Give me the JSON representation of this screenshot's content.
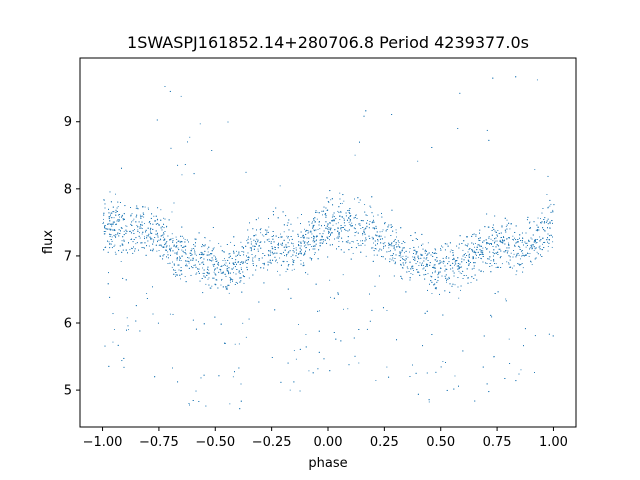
{
  "chart_data": {
    "type": "scatter",
    "title": "1SWASPJ161852.14+280706.8 Period 4239377.0s",
    "xlabel": "phase",
    "ylabel": "flux",
    "xlim": [
      -1.1,
      1.1
    ],
    "ylim": [
      4.45,
      9.95
    ],
    "x_ticks": [
      -1.0,
      -0.75,
      -0.5,
      -0.25,
      0.0,
      0.25,
      0.5,
      0.75,
      1.0
    ],
    "x_tick_labels": [
      "−1.00",
      "−0.75",
      "−0.50",
      "−0.25",
      "0.00",
      "0.25",
      "0.50",
      "0.75",
      "1.00"
    ],
    "y_ticks": [
      5,
      6,
      7,
      8,
      9
    ],
    "y_tick_labels": [
      "5",
      "6",
      "7",
      "8",
      "9"
    ],
    "grid": false,
    "marker_color": "#1f77b4",
    "series": [
      {
        "phase_curve": {
          "x": [
            -1.0,
            -0.95,
            -0.9,
            -0.85,
            -0.8,
            -0.75,
            -0.7,
            -0.65,
            -0.6,
            -0.55,
            -0.5,
            -0.45,
            -0.4,
            -0.35,
            -0.3,
            -0.25,
            -0.2,
            -0.15,
            -0.1,
            -0.05,
            0.0,
            0.05,
            0.1,
            0.15,
            0.2,
            0.25,
            0.3,
            0.35,
            0.4,
            0.45,
            0.5,
            0.55,
            0.6,
            0.65,
            0.7,
            0.75,
            0.8,
            0.85,
            0.9,
            0.95,
            1.0
          ],
          "y": [
            7.5,
            7.45,
            7.4,
            7.45,
            7.4,
            7.3,
            7.15,
            7.0,
            6.95,
            6.95,
            6.9,
            6.85,
            6.9,
            7.05,
            7.15,
            7.2,
            7.15,
            7.1,
            7.2,
            7.35,
            7.45,
            7.5,
            7.45,
            7.4,
            7.35,
            7.25,
            7.1,
            7.0,
            6.95,
            6.9,
            6.85,
            6.85,
            6.9,
            7.0,
            7.15,
            7.2,
            7.15,
            7.1,
            7.2,
            7.35,
            7.5
          ]
        }
      }
    ]
  }
}
